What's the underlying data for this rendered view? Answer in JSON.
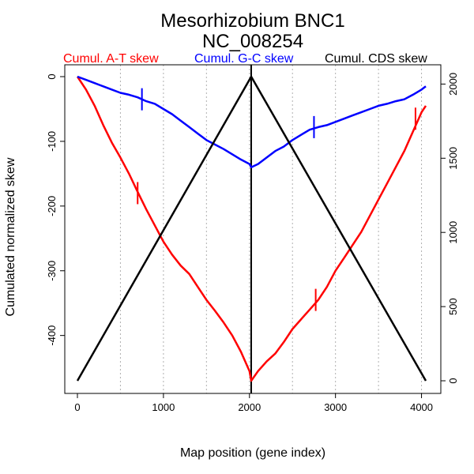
{
  "chart_data": {
    "type": "line",
    "title": "Mesorhizobium BNC1",
    "subtitle": "NC_008254",
    "xlabel": "Map position (gene index)",
    "ylabel": "Cumulated normalized skew",
    "xlim": [
      0,
      4050
    ],
    "ylim_left": [
      -470,
      0
    ],
    "ylim_right": [
      0,
      2050
    ],
    "x_ticks": [
      0,
      1000,
      2000,
      3000,
      4000
    ],
    "y_left_ticks": [
      0,
      -100,
      -200,
      -300,
      -400
    ],
    "y_right_ticks": [
      0,
      500,
      1000,
      1500,
      2000
    ],
    "vertical_gridlines": [
      500,
      1000,
      1500,
      2000,
      2500,
      3000,
      3500,
      4000
    ],
    "divider_x": 2020,
    "series": [
      {
        "name": "Cumul. A-T skew",
        "color": "#ff0000",
        "axis": "left",
        "x": [
          0,
          100,
          200,
          300,
          400,
          500,
          600,
          700,
          800,
          900,
          1000,
          1100,
          1200,
          1300,
          1400,
          1500,
          1600,
          1700,
          1800,
          1900,
          2000,
          2020,
          2100,
          2200,
          2300,
          2400,
          2500,
          2600,
          2700,
          2800,
          2900,
          3000,
          3100,
          3200,
          3300,
          3400,
          3500,
          3600,
          3700,
          3800,
          3900,
          4000,
          4050
        ],
        "values": [
          0,
          -20,
          -45,
          -75,
          -102,
          -125,
          -150,
          -178,
          -205,
          -230,
          -255,
          -275,
          -292,
          -305,
          -325,
          -345,
          -362,
          -380,
          -400,
          -425,
          -455,
          -470,
          -455,
          -440,
          -428,
          -410,
          -390,
          -375,
          -360,
          -345,
          -325,
          -300,
          -280,
          -260,
          -240,
          -215,
          -190,
          -165,
          -140,
          -115,
          -85,
          -55,
          -45
        ]
      },
      {
        "name": "Cumul. G-C skew",
        "color": "#0000ff",
        "axis": "left",
        "x": [
          0,
          100,
          200,
          300,
          400,
          500,
          600,
          700,
          800,
          900,
          1000,
          1100,
          1200,
          1300,
          1400,
          1500,
          1600,
          1700,
          1800,
          1900,
          2000,
          2020,
          2100,
          2200,
          2300,
          2400,
          2500,
          2600,
          2700,
          2800,
          2900,
          3000,
          3100,
          3200,
          3300,
          3400,
          3500,
          3600,
          3700,
          3800,
          3900,
          4000,
          4050
        ],
        "values": [
          0,
          -5,
          -10,
          -15,
          -20,
          -25,
          -28,
          -32,
          -38,
          -42,
          -50,
          -58,
          -68,
          -78,
          -88,
          -98,
          -105,
          -112,
          -120,
          -128,
          -135,
          -140,
          -135,
          -125,
          -115,
          -108,
          -98,
          -90,
          -82,
          -78,
          -75,
          -70,
          -65,
          -60,
          -55,
          -50,
          -45,
          -42,
          -38,
          -35,
          -28,
          -20,
          -15
        ]
      },
      {
        "name": "Cumul. CDS skew",
        "color": "#000000",
        "axis": "right",
        "x": [
          0,
          2020,
          4050
        ],
        "values": [
          0,
          2050,
          0
        ]
      }
    ],
    "markers": [
      {
        "series": "Cumul. A-T skew",
        "x": 700,
        "y": -180
      },
      {
        "series": "Cumul. A-T skew",
        "x": 2770,
        "y": -345
      },
      {
        "series": "Cumul. A-T skew",
        "x": 3930,
        "y": -65
      },
      {
        "series": "Cumul. G-C skew",
        "x": 750,
        "y": -35
      },
      {
        "series": "Cumul. G-C skew",
        "x": 2750,
        "y": -78
      }
    ]
  }
}
